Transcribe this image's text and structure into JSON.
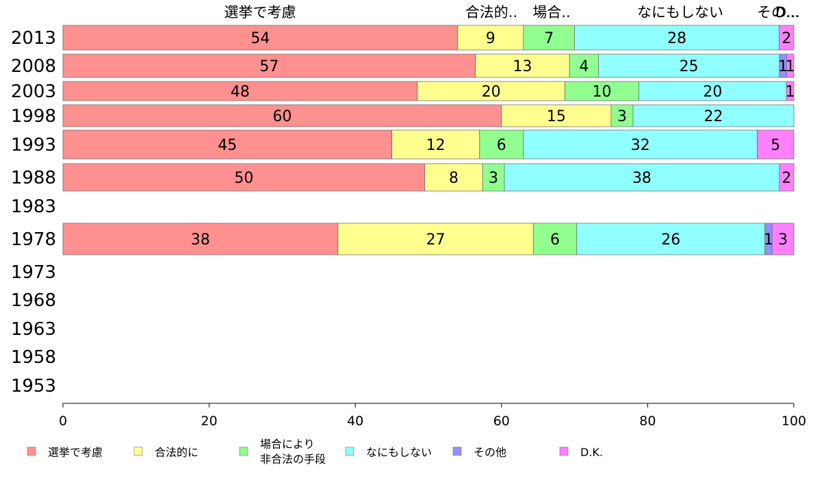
{
  "chart_data": {
    "type": "bar",
    "orientation": "horizontal",
    "stacked": true,
    "categories": [
      "2013",
      "2008",
      "2003",
      "1998",
      "1993",
      "1988",
      "1983",
      "1978",
      "1973",
      "1968",
      "1963",
      "1958",
      "1953"
    ],
    "series": [
      {
        "name": "選挙で考慮",
        "color": "#ff9090",
        "values": [
          54,
          57,
          48,
          60,
          45,
          50,
          null,
          38,
          null,
          null,
          null,
          null,
          null
        ]
      },
      {
        "name": "合法的に",
        "color": "#ffff90",
        "values": [
          9,
          13,
          20,
          15,
          12,
          8,
          null,
          27,
          null,
          null,
          null,
          null,
          null
        ]
      },
      {
        "name": "場合により\n非合法の手段",
        "color": "#90ff90",
        "values": [
          7,
          4,
          10,
          3,
          6,
          3,
          null,
          6,
          null,
          null,
          null,
          null,
          null
        ]
      },
      {
        "name": "なにもしない",
        "color": "#90ffff",
        "values": [
          28,
          25,
          20,
          22,
          32,
          38,
          null,
          26,
          null,
          null,
          null,
          null,
          null
        ]
      },
      {
        "name": "その他",
        "color": "#9090ff",
        "values": [
          0,
          1,
          0,
          0,
          0,
          0,
          null,
          1,
          null,
          null,
          null,
          null,
          null
        ]
      },
      {
        "name": "D.K.",
        "color": "#ff80ff",
        "values": [
          2,
          1,
          1,
          0,
          5,
          2,
          null,
          3,
          null,
          null,
          null,
          null,
          null
        ]
      }
    ],
    "top_labels": [
      "選挙で考慮",
      "合法的..",
      "場合..",
      "なにもしない",
      "その...",
      "D..."
    ],
    "x_ticks": [
      "0",
      "20",
      "40",
      "60",
      "80",
      "100"
    ],
    "xlim": [
      0,
      100
    ],
    "grid": false,
    "legend_position": "bottom"
  }
}
